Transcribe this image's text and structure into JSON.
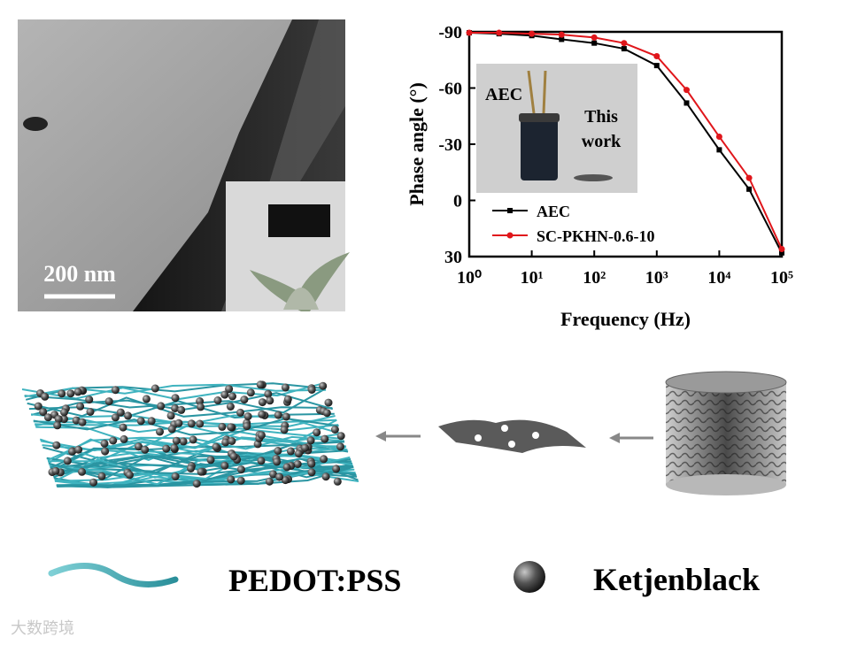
{
  "sem_image": {
    "scale_bar": "200 nm"
  },
  "chart_data": {
    "type": "line",
    "log_x": true,
    "xlabel": "Frequency (Hz)",
    "ylabel": "Phase angle (°)",
    "x": [
      1,
      3,
      10,
      30,
      100,
      300,
      1000,
      3000,
      10000,
      30000,
      100000
    ],
    "series": [
      {
        "name": "AEC",
        "color": "#000000",
        "marker": "square",
        "values": [
          -89.5,
          -89,
          -88,
          -86,
          -84,
          -81,
          -72,
          -52,
          -27,
          -6,
          28
        ]
      },
      {
        "name": "SC-PKHN-0.6-10",
        "color": "#e0161b",
        "marker": "circle",
        "values": [
          -89.5,
          -89.5,
          -89,
          -88.5,
          -87,
          -84,
          -77,
          -59,
          -34,
          -12,
          26
        ]
      }
    ],
    "xlim": [
      1,
      100000
    ],
    "xticks": [
      {
        "value": 1,
        "label": "10⁰"
      },
      {
        "value": 10,
        "label": "10¹"
      },
      {
        "value": 100,
        "label": "10²"
      },
      {
        "value": 1000,
        "label": "10³"
      },
      {
        "value": 10000,
        "label": "10⁴"
      },
      {
        "value": 100000,
        "label": "10⁵"
      }
    ],
    "ylim": [
      30,
      -90
    ],
    "yticks": [
      -90,
      -60,
      -30,
      0,
      30
    ],
    "annotations": [
      "AEC",
      "This work"
    ]
  },
  "schematic": {
    "labels": [
      "PEDOT:PSS",
      "Ketjenblack"
    ]
  },
  "watermark": "大数跨境"
}
